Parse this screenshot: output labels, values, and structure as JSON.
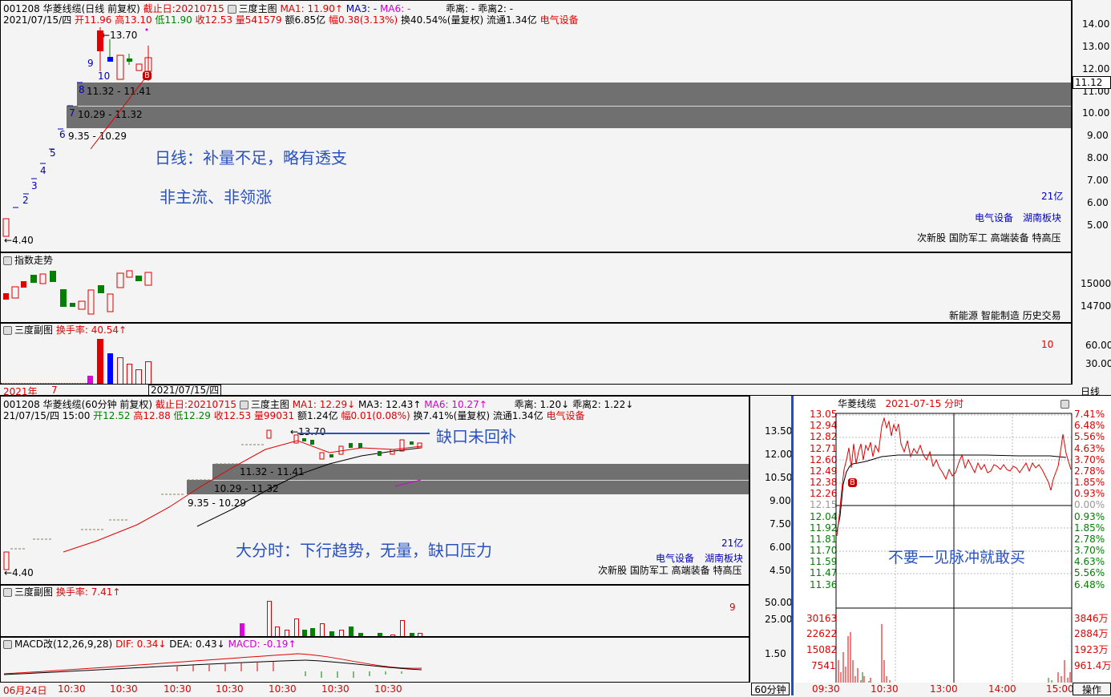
{
  "daily": {
    "line1": [
      "001208 华菱线缆(日线 前复权)",
      "截止日:20210715",
      "三度主图",
      "MA1: 11.90↑",
      "MA3: -",
      "MA6: -",
      "乖离: -",
      "乖离2: -"
    ],
    "line2": [
      "2021/07/15/四",
      "开11.96",
      "高13.10",
      "低11.90",
      "收12.53",
      "量541579",
      "额6.85亿",
      "幅0.38(3.13%)",
      "换40.54%(量复权)",
      "流通1.34亿",
      "电气设备"
    ],
    "ticks": [
      "14.00",
      "13.00",
      "12.00",
      "11.00",
      "10.00",
      "9.00",
      "8.00",
      "7.00",
      "6.00",
      "5.00"
    ],
    "price_tag": "11.12",
    "gap1": "11.32 - 11.41",
    "gap2": "10.29 - 11.32",
    "gap3": "9.35 - 10.29",
    "high": "13.70",
    "low": "4.40",
    "counts": [
      "2",
      "3",
      "4",
      "5",
      "6",
      "7",
      "8",
      "9",
      "10"
    ],
    "b_label": "B",
    "ann1": "日线：补量不足，略有透支",
    "ann2": "非主流、非领涨",
    "cap": "21亿",
    "sector1": "电气设备",
    "sector2": "湖南板块",
    "tags": "次新股 国防军工 高端装备 特高压"
  },
  "index": {
    "title": "指数走势",
    "ticks": [
      "15000",
      "14700"
    ],
    "tags": "新能源 智能制造 历史交易"
  },
  "sub1": {
    "title": "三度副图",
    "label": "换手率: 40.54↑",
    "ticks": [
      "60.00",
      "30.00"
    ],
    "val": "10"
  },
  "datebar": {
    "year": "2021年",
    "m": "7",
    "date": "2021/07/15/四",
    "right": "日线"
  },
  "hourly": {
    "line1": [
      "001208 华菱线缆(60分钟 前复权)",
      "截止日:20210715",
      "三度主图",
      "MA1: 12.29↓",
      "MA3: 12.43↑",
      "MA6: 10.27↑",
      "乖离: 1.20↓",
      "乖离2: 1.22↓"
    ],
    "line2": [
      "21/07/15/四 15:00",
      "开12.52",
      "高12.88",
      "低12.29",
      "收12.53",
      "量99031",
      "额1.24亿",
      "幅0.01(0.08%)",
      "换7.41%(量复权)",
      "流通1.34亿",
      "电气设备"
    ],
    "ticks": [
      "13.50",
      "12.00",
      "10.50",
      "9.00",
      "7.50",
      "6.00",
      "4.50"
    ],
    "gap1": "11.32 - 11.41",
    "gap2": "10.29 - 11.32",
    "gap3": "9.35 - 10.29",
    "high": "13.70",
    "low": "4.40",
    "ann1": "缺口未回补",
    "ann2": "大分时：下行趋势，无量，缺口压力",
    "cap": "21亿",
    "sector1": "电气设备",
    "sector2": "湖南板块",
    "tags": "次新股 国防军工 高端装备 特高压"
  },
  "sub2": {
    "title": "三度副图",
    "label": "换手率: 7.41↑",
    "ticks": [
      "50.00",
      "25.00"
    ],
    "val": "9"
  },
  "macd": {
    "title": "MACD改(12,26,9,28)",
    "dif": "DIF: 0.34↓",
    "dea": "DEA: 0.43↓",
    "macd": "MACD: -0.19↑",
    "tick": "1.50"
  },
  "hourbar": {
    "labels": [
      "06月24日",
      "10:30",
      "10:30",
      "10:30",
      "10:30",
      "10:30",
      "10:30",
      "10:30"
    ],
    "right": "60分钟"
  },
  "intraday": {
    "title": "华菱线缆",
    "date": "2021-07-15 分时",
    "left": [
      "13.05",
      "12.94",
      "12.82",
      "12.71",
      "12.60",
      "12.49",
      "12.38",
      "12.26",
      "12.15",
      "12.04",
      "11.92",
      "11.81",
      "11.70",
      "11.59",
      "11.47",
      "11.36"
    ],
    "right": [
      "7.41%",
      "6.48%",
      "5.56%",
      "4.63%",
      "3.70%",
      "2.78%",
      "1.85%",
      "0.93%",
      "0.00%",
      "0.93%",
      "1.85%",
      "2.78%",
      "3.70%",
      "4.63%",
      "5.56%",
      "6.48%"
    ],
    "vol_left": [
      "30163",
      "22622",
      "15082",
      "7541"
    ],
    "vol_right": [
      "3846万",
      "2884万",
      "1923万",
      "961.4万"
    ],
    "times": [
      "09:30",
      "10:30",
      "13:00",
      "14:00",
      "15:00"
    ],
    "ann": "不要一见脉冲就敢买",
    "b_label": "B",
    "op": "操作"
  },
  "colors": {
    "up": "#e00000",
    "down": "#008000",
    "gap": "#707070",
    "ann": "#2a52be"
  }
}
